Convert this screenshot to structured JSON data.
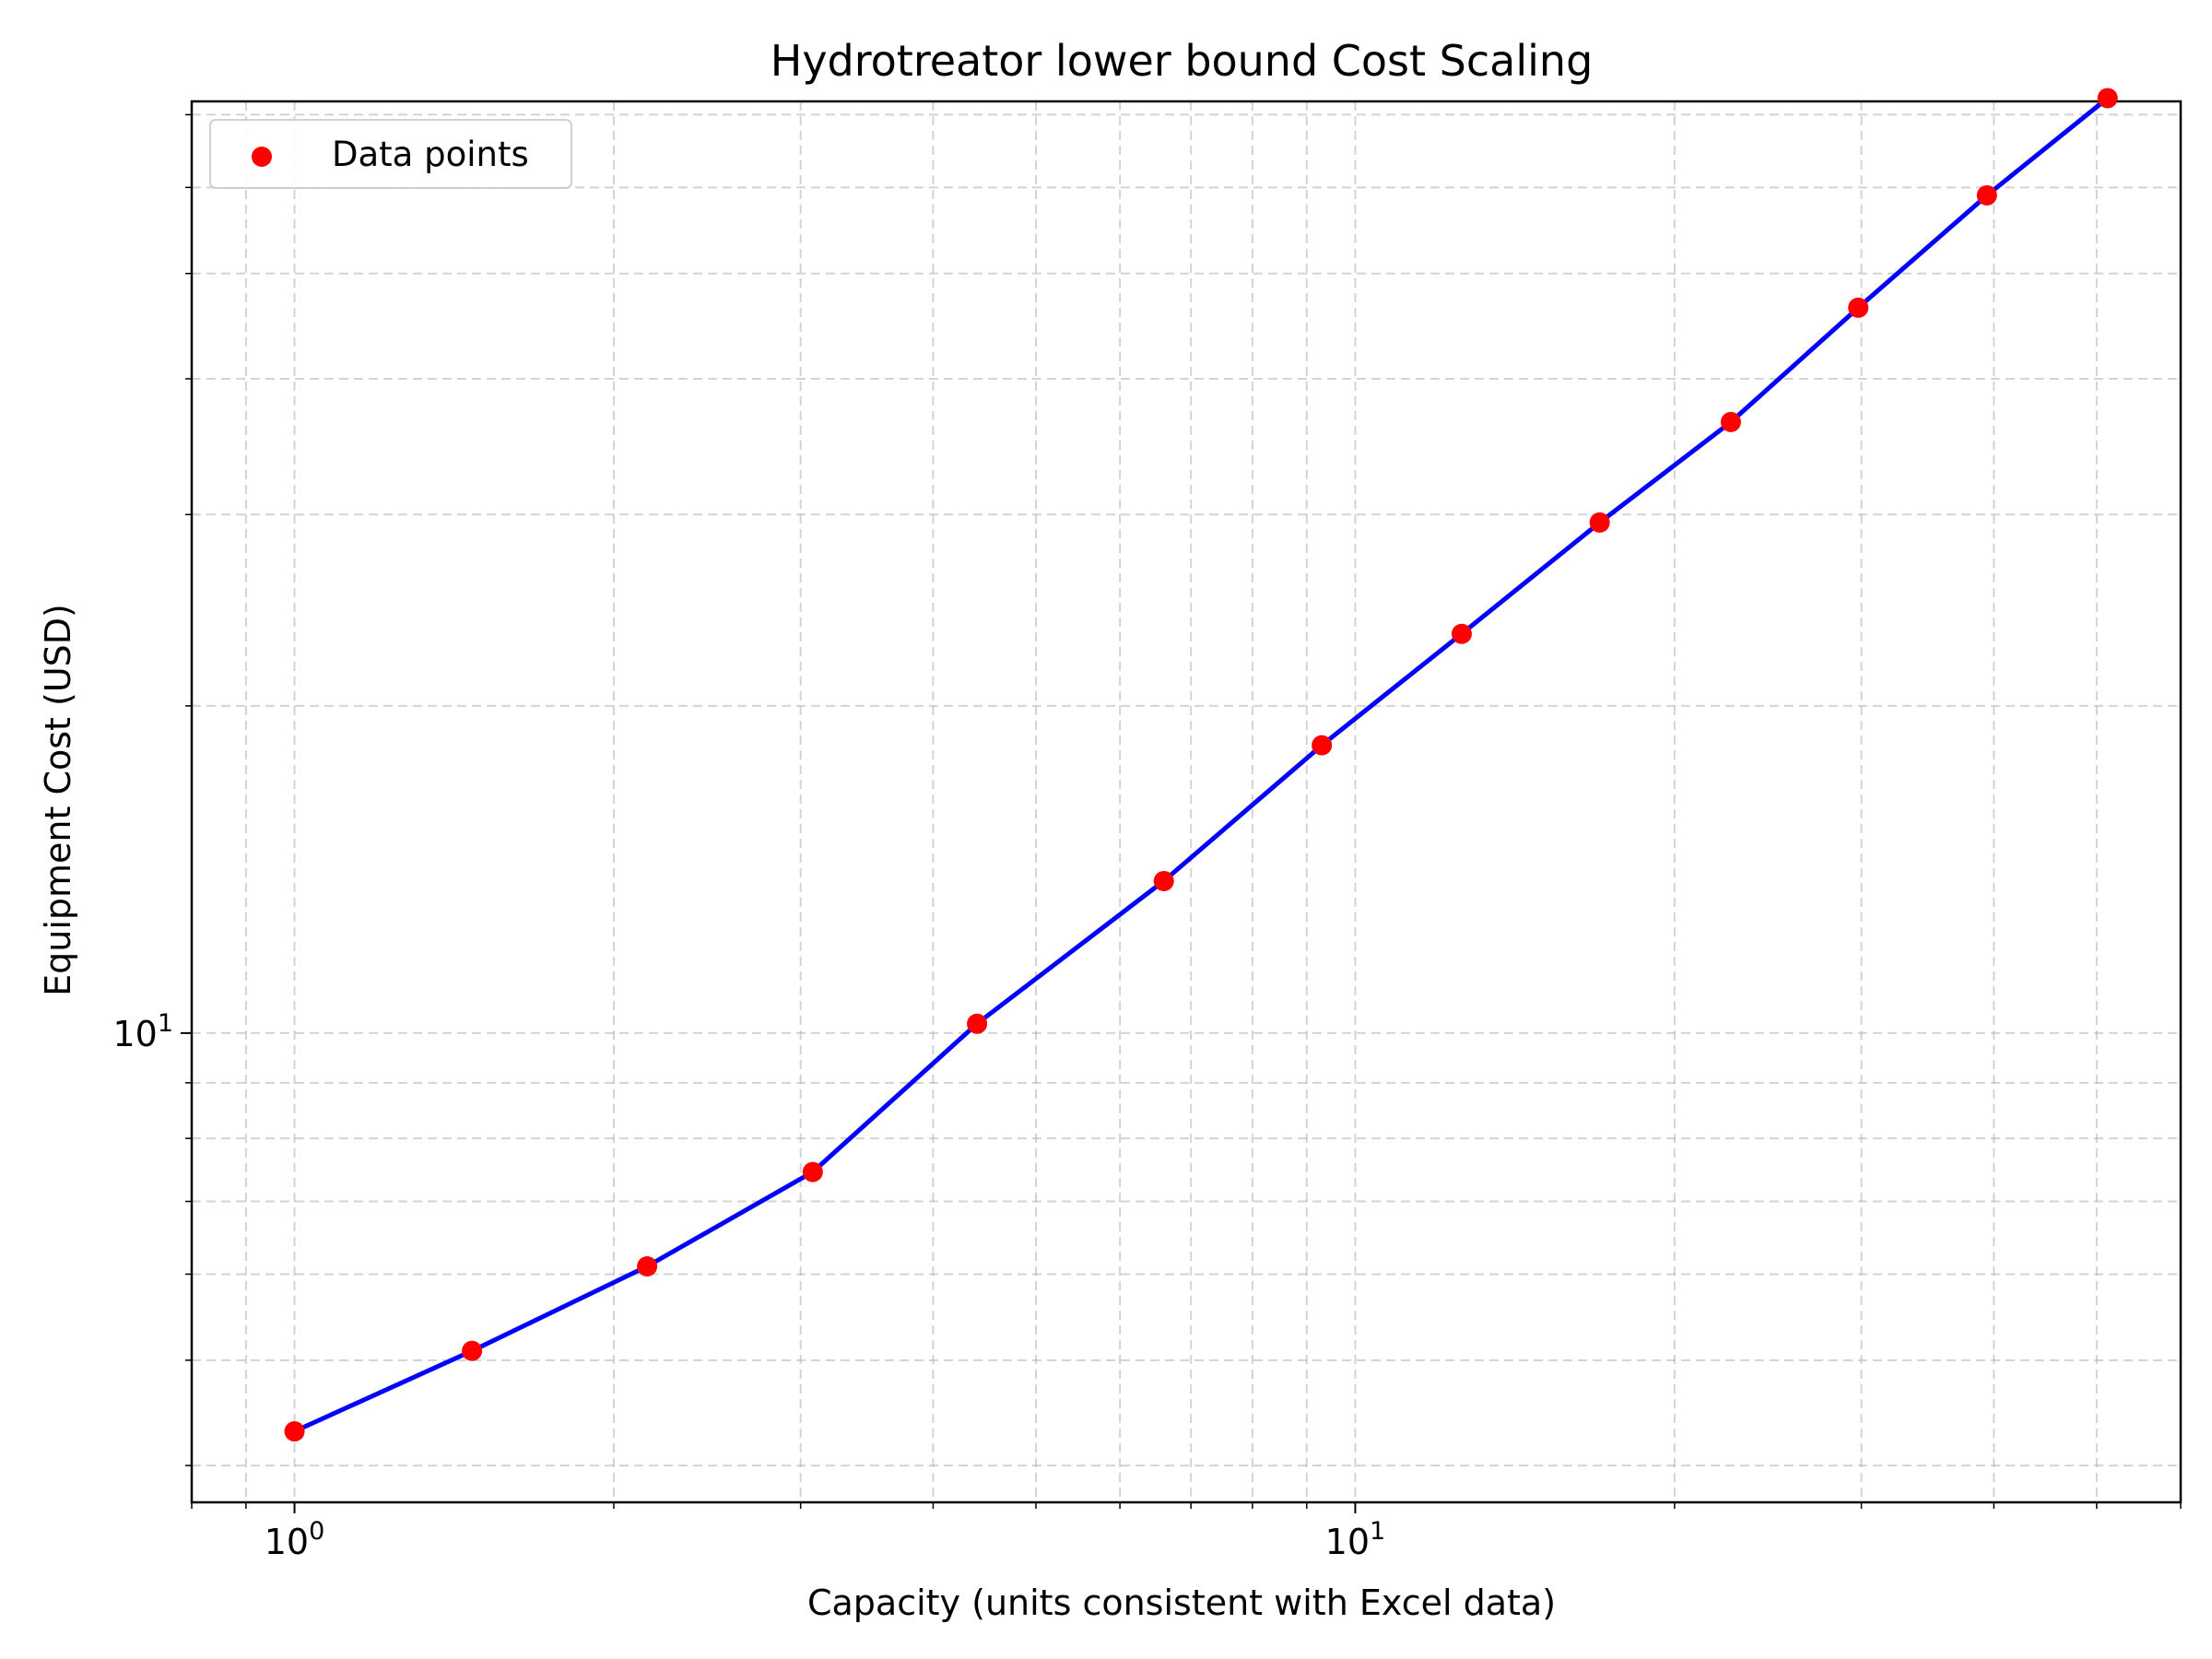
{
  "colors": {
    "background": "#ffffff",
    "grid": "#b0b0b0",
    "axes": "#000000",
    "fit_line": "#0000ff",
    "data_points": "#ff0000",
    "legend_border": "#cccccc"
  },
  "chart_data": {
    "type": "scatter",
    "title": "Hydrotreator lower bound Cost Scaling",
    "xlabel": "Capacity (units consistent with Excel data)",
    "ylabel": "Equipment Cost (USD)",
    "xscale": "log",
    "yscale": "log",
    "xlim": [
      0.8,
      60
    ],
    "ylim": [
      3.7,
      72
    ],
    "xticks": [
      {
        "value": 1,
        "base": "10",
        "exp": "0"
      },
      {
        "value": 10,
        "base": "10",
        "exp": "1"
      }
    ],
    "yticks": [
      {
        "value": 10,
        "base": "10",
        "exp": "1"
      }
    ],
    "grid": true,
    "legend": {
      "location": "upper left",
      "entries": [
        "Data points"
      ]
    },
    "series": [
      {
        "name": "Data points",
        "kind": "scatter",
        "color": "#ff0000",
        "x": [
          1.0,
          1.47,
          2.15,
          3.08,
          4.4,
          6.6,
          9.3,
          12.6,
          17.0,
          22.6,
          29.8,
          39.4,
          51.2
        ],
        "y": [
          4.3,
          5.1,
          6.1,
          7.45,
          10.2,
          13.8,
          18.4,
          23.3,
          29.5,
          36.5,
          46.5,
          59.0,
          72.5
        ]
      },
      {
        "kind": "line",
        "color": "#0000ff",
        "x": [
          1.0,
          1.47,
          2.15,
          3.08,
          4.4,
          6.6,
          9.3,
          12.6,
          17.0,
          22.6,
          29.8,
          39.4,
          51.2
        ],
        "y": [
          4.3,
          5.1,
          6.1,
          7.45,
          10.2,
          13.8,
          18.4,
          23.3,
          29.5,
          36.5,
          46.5,
          59.0,
          72.5
        ]
      }
    ]
  }
}
